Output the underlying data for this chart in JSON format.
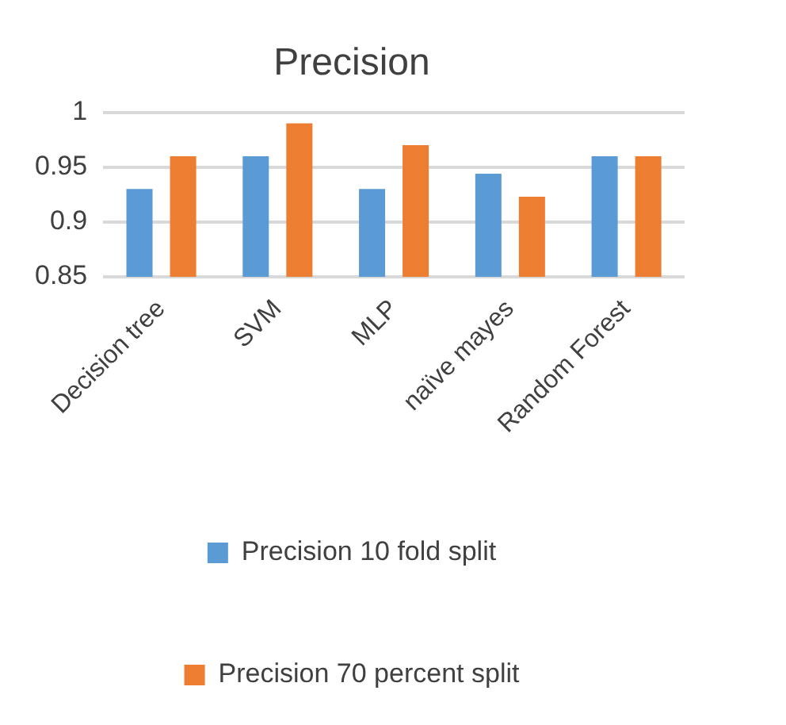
{
  "chart_data": {
    "type": "bar",
    "title": "Precision",
    "categories": [
      "Decision tree",
      "SVM",
      "MLP",
      "naïve mayes",
      "Random Forest"
    ],
    "series": [
      {
        "name": "Precision 10 fold split",
        "color": "#5b9bd5",
        "values": [
          0.93,
          0.96,
          0.93,
          0.944,
          0.96
        ]
      },
      {
        "name": "Precision 70 percent split",
        "color": "#ed7d31",
        "values": [
          0.96,
          0.99,
          0.97,
          0.923,
          0.96
        ]
      }
    ],
    "ylim": [
      0.85,
      1
    ],
    "yticks": [
      0.85,
      0.9,
      0.95,
      1
    ],
    "grid": "y",
    "legend": "bottom"
  }
}
